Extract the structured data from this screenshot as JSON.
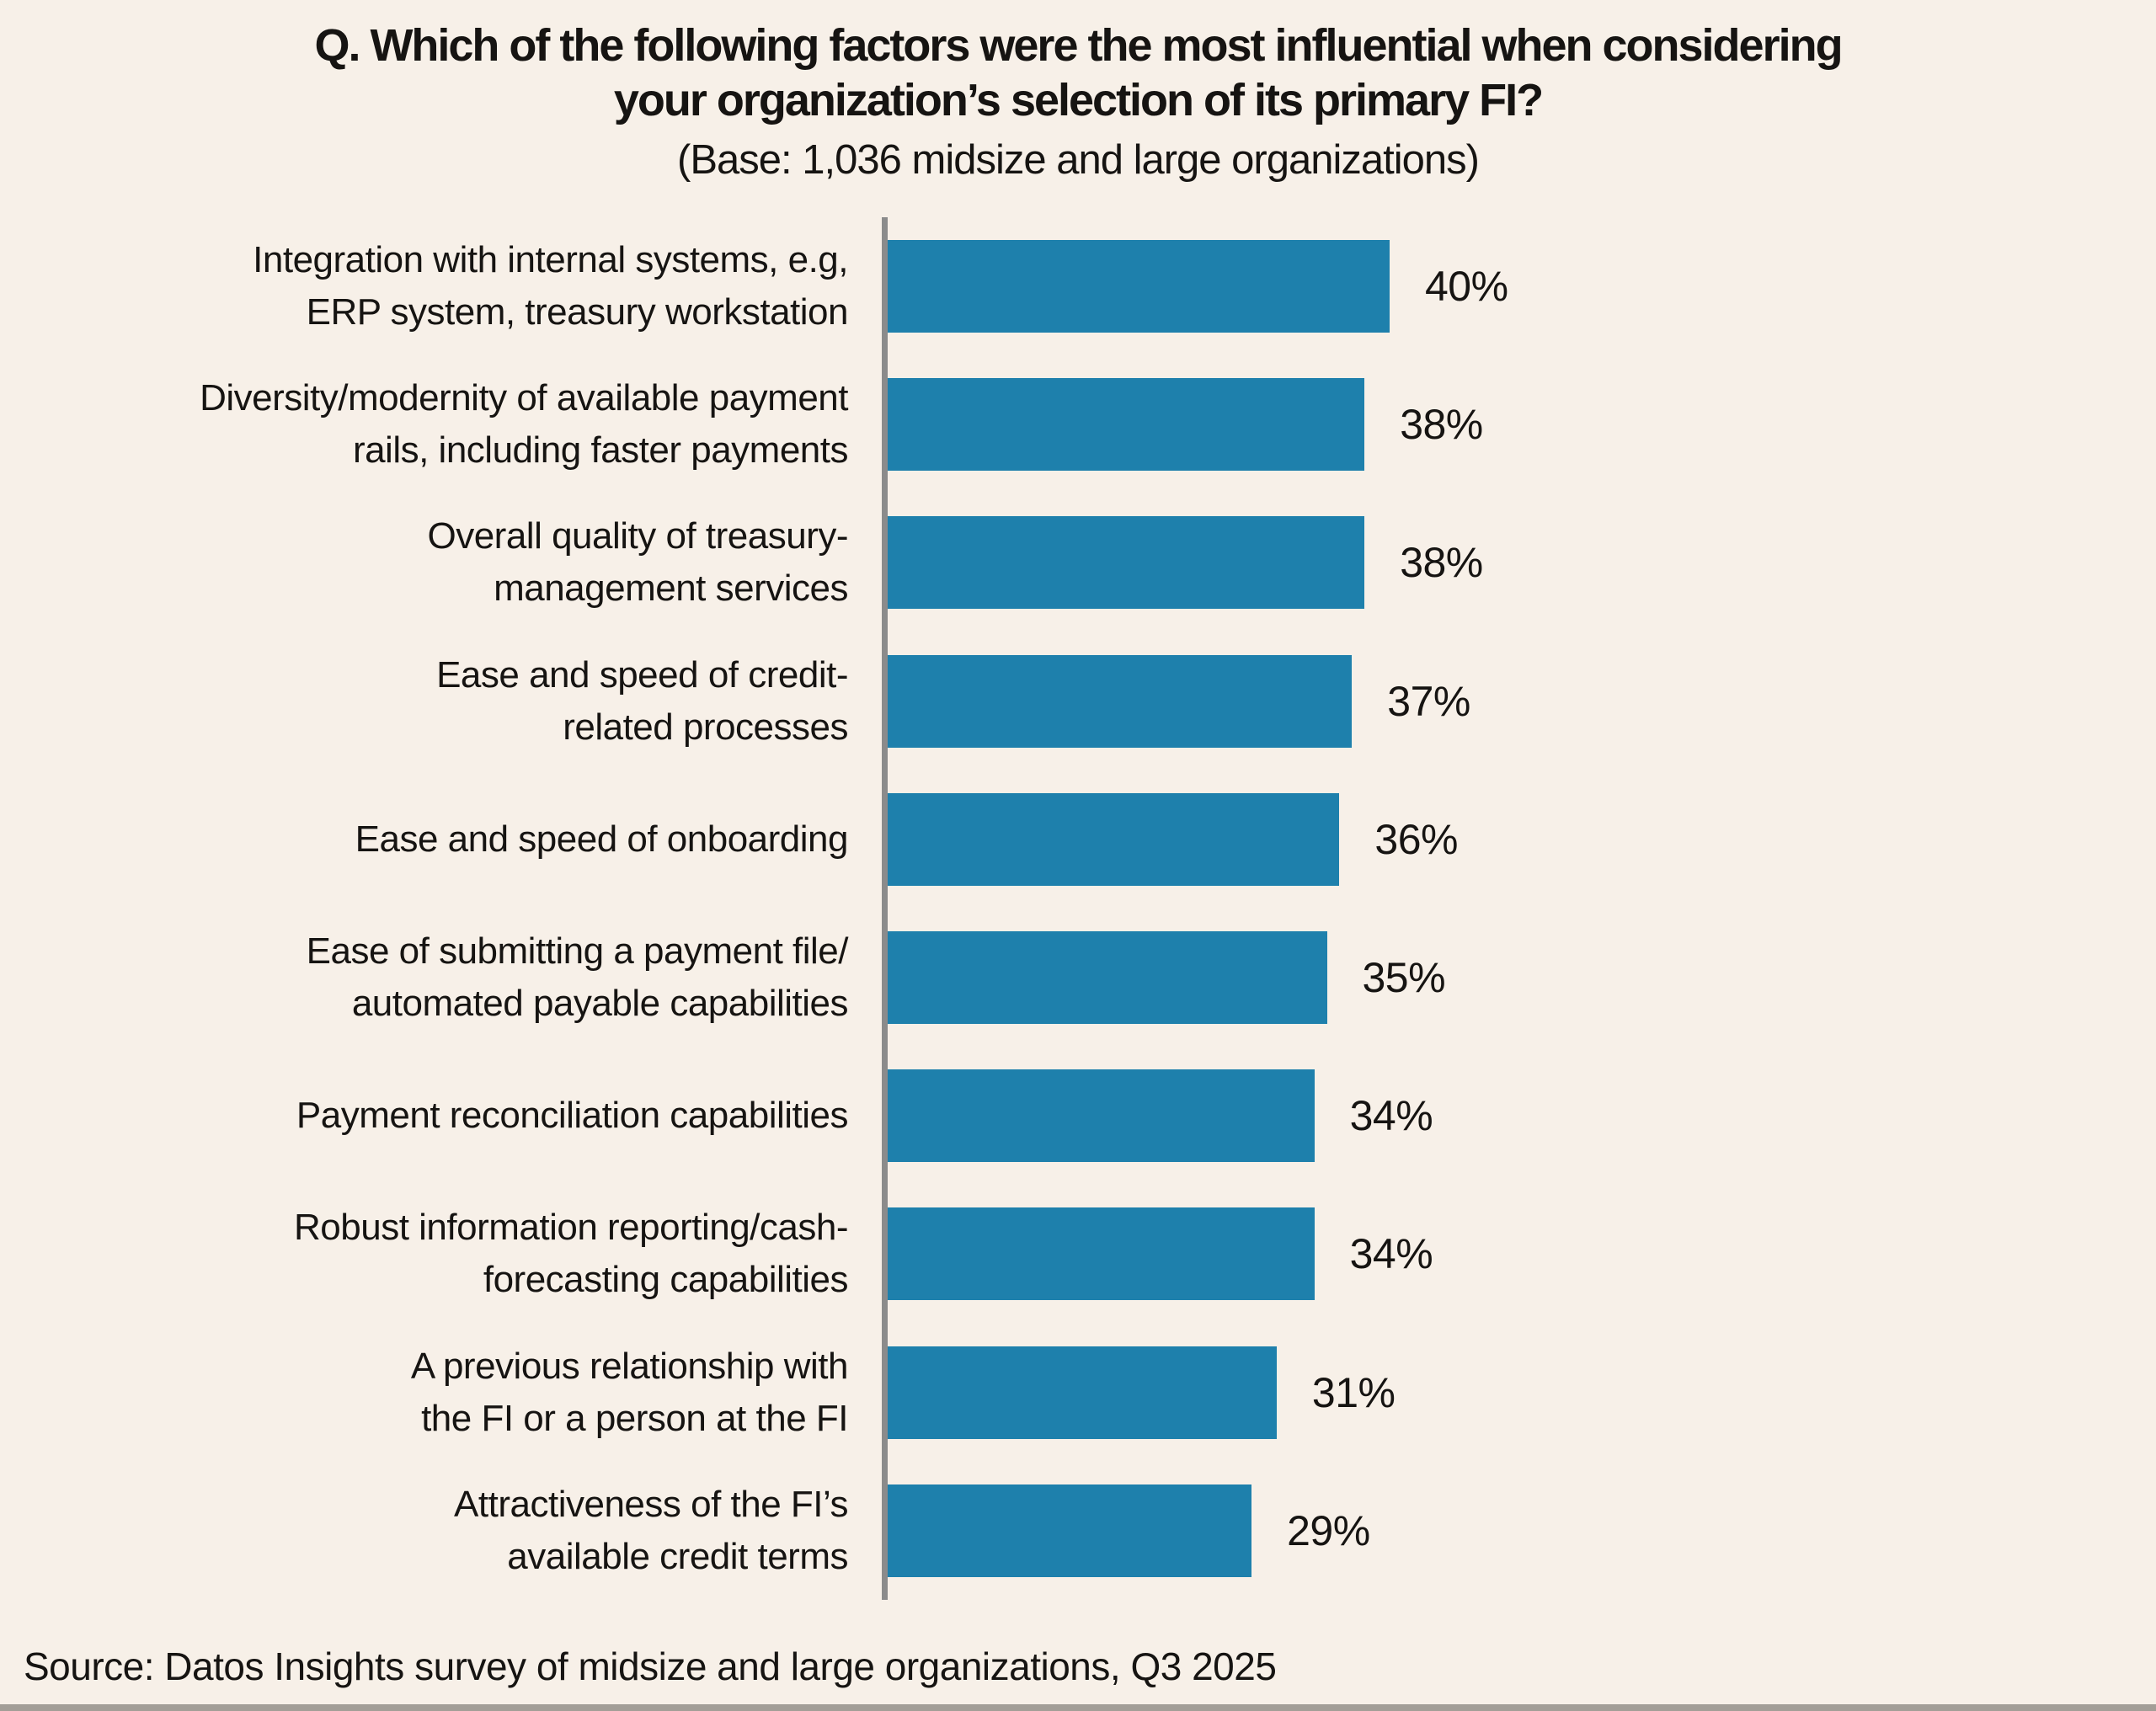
{
  "header": {
    "title": "Q. Which of the following factors were the most influential when considering\nyour organization’s selection of its primary FI?",
    "subtitle": "(Base: 1,036 midsize and large organizations)"
  },
  "chart_data": {
    "type": "bar",
    "orientation": "horizontal",
    "title": "Q. Which of the following factors were the most influential when considering your organization’s selection of its primary FI?",
    "subtitle": "(Base: 1,036 midsize and large organizations)",
    "xlabel": "",
    "ylabel": "",
    "xlim": [
      0,
      100
    ],
    "unit": "percent",
    "grid": false,
    "legend": false,
    "data_labels": "outside-end",
    "bar_color": "#1E80AC",
    "axis_line_color": "#8B8B8B",
    "background_color": "#F7F0E8",
    "categories": [
      "Integration with internal systems, e.g,\nERP system, treasury workstation",
      "Diversity/modernity of available payment\nrails, including faster payments",
      "Overall quality of treasury-\nmanagement services",
      "Ease and speed of credit-\nrelated processes",
      "Ease and speed of onboarding",
      "Ease of submitting a payment file/\nautomated payable capabilities",
      "Payment reconciliation capabilities",
      "Robust information reporting/cash-\nforecasting capabilities",
      "A previous relationship with\nthe FI or a person at the FI",
      "Attractiveness of the FI’s\navailable credit terms"
    ],
    "values": [
      40,
      38,
      38,
      37,
      36,
      35,
      34,
      34,
      31,
      29
    ],
    "value_labels": [
      "40%",
      "38%",
      "38%",
      "37%",
      "36%",
      "35%",
      "34%",
      "34%",
      "31%",
      "29%"
    ]
  },
  "footer": {
    "source": "Source: Datos Insights survey of midsize and large organizations, Q3 2025"
  }
}
